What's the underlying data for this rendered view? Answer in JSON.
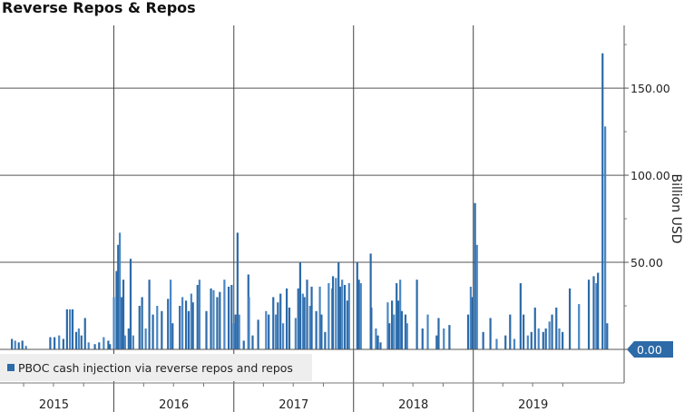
{
  "chart_data": {
    "type": "bar",
    "title": "Reverse Repos & Repos",
    "ylabel": "Billion USD",
    "xlabel": "",
    "ylim": [
      0,
      186
    ],
    "xlim": [
      "2015-01-19",
      "2020-04-05"
    ],
    "y_ticks": [
      "0.00",
      "50.00",
      "100.00",
      "150.00"
    ],
    "y_tick_values": [
      0,
      50,
      100,
      150
    ],
    "x_tick_labels": [
      "2015",
      "2016",
      "2017",
      "2018",
      "2019"
    ],
    "grid": true,
    "legend_position": "bottom-left",
    "last_value_label": "0.00",
    "color": "#2c6aa8",
    "series": [
      {
        "name": "PBOC cash injection via reverse repos and repos",
        "points": [
          [
            "2015-02-24",
            6
          ],
          [
            "2015-03-06",
            5
          ],
          [
            "2015-03-17",
            4
          ],
          [
            "2015-03-28",
            5
          ],
          [
            "2015-04-08",
            2
          ],
          [
            "2015-06-21",
            7
          ],
          [
            "2015-07-04",
            7
          ],
          [
            "2015-07-18",
            8
          ],
          [
            "2015-07-31",
            6
          ],
          [
            "2015-08-11",
            23
          ],
          [
            "2015-08-20",
            23
          ],
          [
            "2015-08-28",
            23
          ],
          [
            "2015-09-08",
            10
          ],
          [
            "2015-09-16",
            12
          ],
          [
            "2015-09-24",
            8
          ],
          [
            "2015-10-05",
            18
          ],
          [
            "2015-10-16",
            4
          ],
          [
            "2015-11-04",
            3
          ],
          [
            "2015-11-17",
            4
          ],
          [
            "2015-12-01",
            7
          ],
          [
            "2015-12-15",
            5
          ],
          [
            "2015-12-20",
            3
          ],
          [
            "2016-01-01",
            30
          ],
          [
            "2016-01-09",
            45
          ],
          [
            "2016-01-14",
            60
          ],
          [
            "2016-01-19",
            67
          ],
          [
            "2016-01-25",
            30
          ],
          [
            "2016-01-30",
            40
          ],
          [
            "2016-02-04",
            8
          ],
          [
            "2016-02-15",
            12
          ],
          [
            "2016-02-21",
            52
          ],
          [
            "2016-02-29",
            8
          ],
          [
            "2016-03-19",
            25
          ],
          [
            "2016-03-27",
            30
          ],
          [
            "2016-04-07",
            12
          ],
          [
            "2016-04-18",
            40
          ],
          [
            "2016-04-29",
            20
          ],
          [
            "2016-05-12",
            25
          ],
          [
            "2016-05-26",
            22
          ],
          [
            "2016-06-14",
            29
          ],
          [
            "2016-06-22",
            40
          ],
          [
            "2016-06-28",
            15
          ],
          [
            "2016-07-20",
            25
          ],
          [
            "2016-07-28",
            30
          ],
          [
            "2016-08-08",
            28
          ],
          [
            "2016-08-16",
            22
          ],
          [
            "2016-08-24",
            32
          ],
          [
            "2016-08-29",
            27
          ],
          [
            "2016-09-12",
            37
          ],
          [
            "2016-09-18",
            40
          ],
          [
            "2016-10-09",
            22
          ],
          [
            "2016-10-23",
            35
          ],
          [
            "2016-10-31",
            34
          ],
          [
            "2016-11-11",
            30
          ],
          [
            "2016-11-19",
            33
          ],
          [
            "2016-12-03",
            40
          ],
          [
            "2016-12-16",
            36
          ],
          [
            "2016-12-25",
            37
          ],
          [
            "2017-01-01",
            15
          ],
          [
            "2017-01-06",
            20
          ],
          [
            "2017-01-12",
            67
          ],
          [
            "2017-01-17",
            20
          ],
          [
            "2017-01-31",
            5
          ],
          [
            "2017-02-14",
            43
          ],
          [
            "2017-02-16",
            30
          ],
          [
            "2017-02-27",
            8
          ],
          [
            "2017-03-16",
            17
          ],
          [
            "2017-04-09",
            22
          ],
          [
            "2017-04-17",
            20
          ],
          [
            "2017-05-01",
            30
          ],
          [
            "2017-05-09",
            20
          ],
          [
            "2017-05-15",
            27
          ],
          [
            "2017-05-23",
            32
          ],
          [
            "2017-05-31",
            15
          ],
          [
            "2017-06-11",
            35
          ],
          [
            "2017-06-19",
            24
          ],
          [
            "2017-07-08",
            18
          ],
          [
            "2017-07-16",
            35
          ],
          [
            "2017-07-22",
            50
          ],
          [
            "2017-07-30",
            32
          ],
          [
            "2017-08-04",
            30
          ],
          [
            "2017-08-12",
            40
          ],
          [
            "2017-08-21",
            25
          ],
          [
            "2017-08-26",
            36
          ],
          [
            "2017-09-09",
            22
          ],
          [
            "2017-09-20",
            36
          ],
          [
            "2017-09-25",
            20
          ],
          [
            "2017-10-06",
            10
          ],
          [
            "2017-10-17",
            38
          ],
          [
            "2017-10-28",
            35
          ],
          [
            "2017-10-30",
            42
          ],
          [
            "2017-11-08",
            41
          ],
          [
            "2017-11-16",
            50
          ],
          [
            "2017-11-21",
            36
          ],
          [
            "2017-11-27",
            40
          ],
          [
            "2017-12-05",
            37
          ],
          [
            "2017-12-13",
            28
          ],
          [
            "2017-12-18",
            38
          ],
          [
            "2018-01-12",
            50
          ],
          [
            "2018-01-17",
            40
          ],
          [
            "2018-01-23",
            38
          ],
          [
            "2018-02-22",
            55
          ],
          [
            "2018-02-24",
            24
          ],
          [
            "2018-03-10",
            12
          ],
          [
            "2018-03-16",
            8
          ],
          [
            "2018-03-24",
            4
          ],
          [
            "2018-04-15",
            27
          ],
          [
            "2018-04-20",
            15
          ],
          [
            "2018-04-28",
            28
          ],
          [
            "2018-05-04",
            20
          ],
          [
            "2018-05-12",
            38
          ],
          [
            "2018-05-17",
            28
          ],
          [
            "2018-05-23",
            40
          ],
          [
            "2018-05-28",
            22
          ],
          [
            "2018-06-08",
            20
          ],
          [
            "2018-06-13",
            15
          ],
          [
            "2018-07-13",
            40
          ],
          [
            "2018-07-30",
            12
          ],
          [
            "2018-08-15",
            20
          ],
          [
            "2018-09-11",
            8
          ],
          [
            "2018-09-17",
            18
          ],
          [
            "2018-10-03",
            12
          ],
          [
            "2018-10-20",
            14
          ],
          [
            "2018-12-16",
            20
          ],
          [
            "2018-12-24",
            36
          ],
          [
            "2018-12-29",
            30
          ],
          [
            "2019-01-06",
            84
          ],
          [
            "2019-01-12",
            60
          ],
          [
            "2019-01-31",
            10
          ],
          [
            "2019-02-22",
            18
          ],
          [
            "2019-03-13",
            6
          ],
          [
            "2019-04-09",
            8
          ],
          [
            "2019-04-23",
            20
          ],
          [
            "2019-05-06",
            6
          ],
          [
            "2019-05-25",
            38
          ],
          [
            "2019-06-03",
            20
          ],
          [
            "2019-06-16",
            8
          ],
          [
            "2019-06-27",
            10
          ],
          [
            "2019-07-08",
            24
          ],
          [
            "2019-07-19",
            12
          ],
          [
            "2019-08-02",
            10
          ],
          [
            "2019-08-10",
            12
          ],
          [
            "2019-08-21",
            16
          ],
          [
            "2019-08-29",
            20
          ],
          [
            "2019-09-11",
            24
          ],
          [
            "2019-09-20",
            12
          ],
          [
            "2019-09-30",
            10
          ],
          [
            "2019-10-22",
            35
          ],
          [
            "2019-11-19",
            26
          ],
          [
            "2019-12-19",
            40
          ],
          [
            "2020-01-03",
            42
          ],
          [
            "2020-01-11",
            38
          ],
          [
            "2020-01-16",
            44
          ],
          [
            "2020-01-30",
            170
          ],
          [
            "2020-02-07",
            128
          ],
          [
            "2020-02-13",
            15
          ]
        ]
      }
    ]
  }
}
